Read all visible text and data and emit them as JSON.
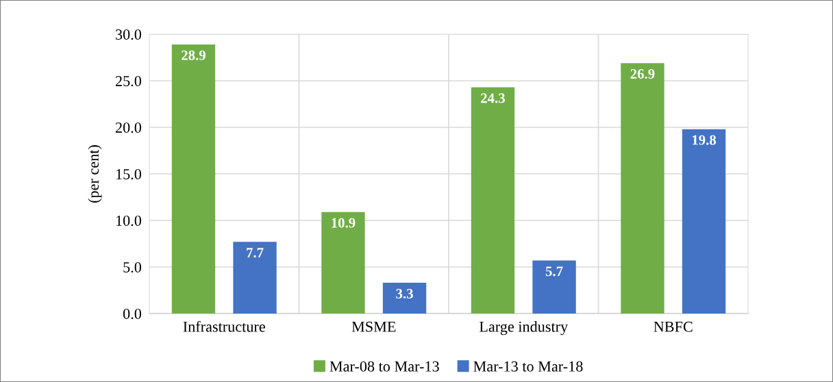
{
  "chart_data": {
    "type": "bar",
    "ylabel": "(per cent)",
    "categories": [
      "Infrastructure",
      "MSME",
      "Large industry",
      "NBFC"
    ],
    "series": [
      {
        "name": "Mar-08 to Mar-13",
        "color": "#70ad47",
        "values": [
          28.9,
          10.9,
          24.3,
          26.9
        ]
      },
      {
        "name": "Mar-13 to Mar-18",
        "color": "#4472c4",
        "values": [
          7.7,
          3.3,
          5.7,
          19.8
        ]
      }
    ],
    "ylim": [
      0,
      30
    ],
    "yticks": [
      {
        "value": 0,
        "label": "0.0"
      },
      {
        "value": 5,
        "label": "5.0"
      },
      {
        "value": 10,
        "label": "10.0"
      },
      {
        "value": 15,
        "label": "15.0"
      },
      {
        "value": 20,
        "label": "20.0"
      },
      {
        "value": 25,
        "label": "25.0"
      },
      {
        "value": 30,
        "label": "30.0"
      }
    ],
    "grid": true,
    "legend": "bottom",
    "data_labels": true
  }
}
